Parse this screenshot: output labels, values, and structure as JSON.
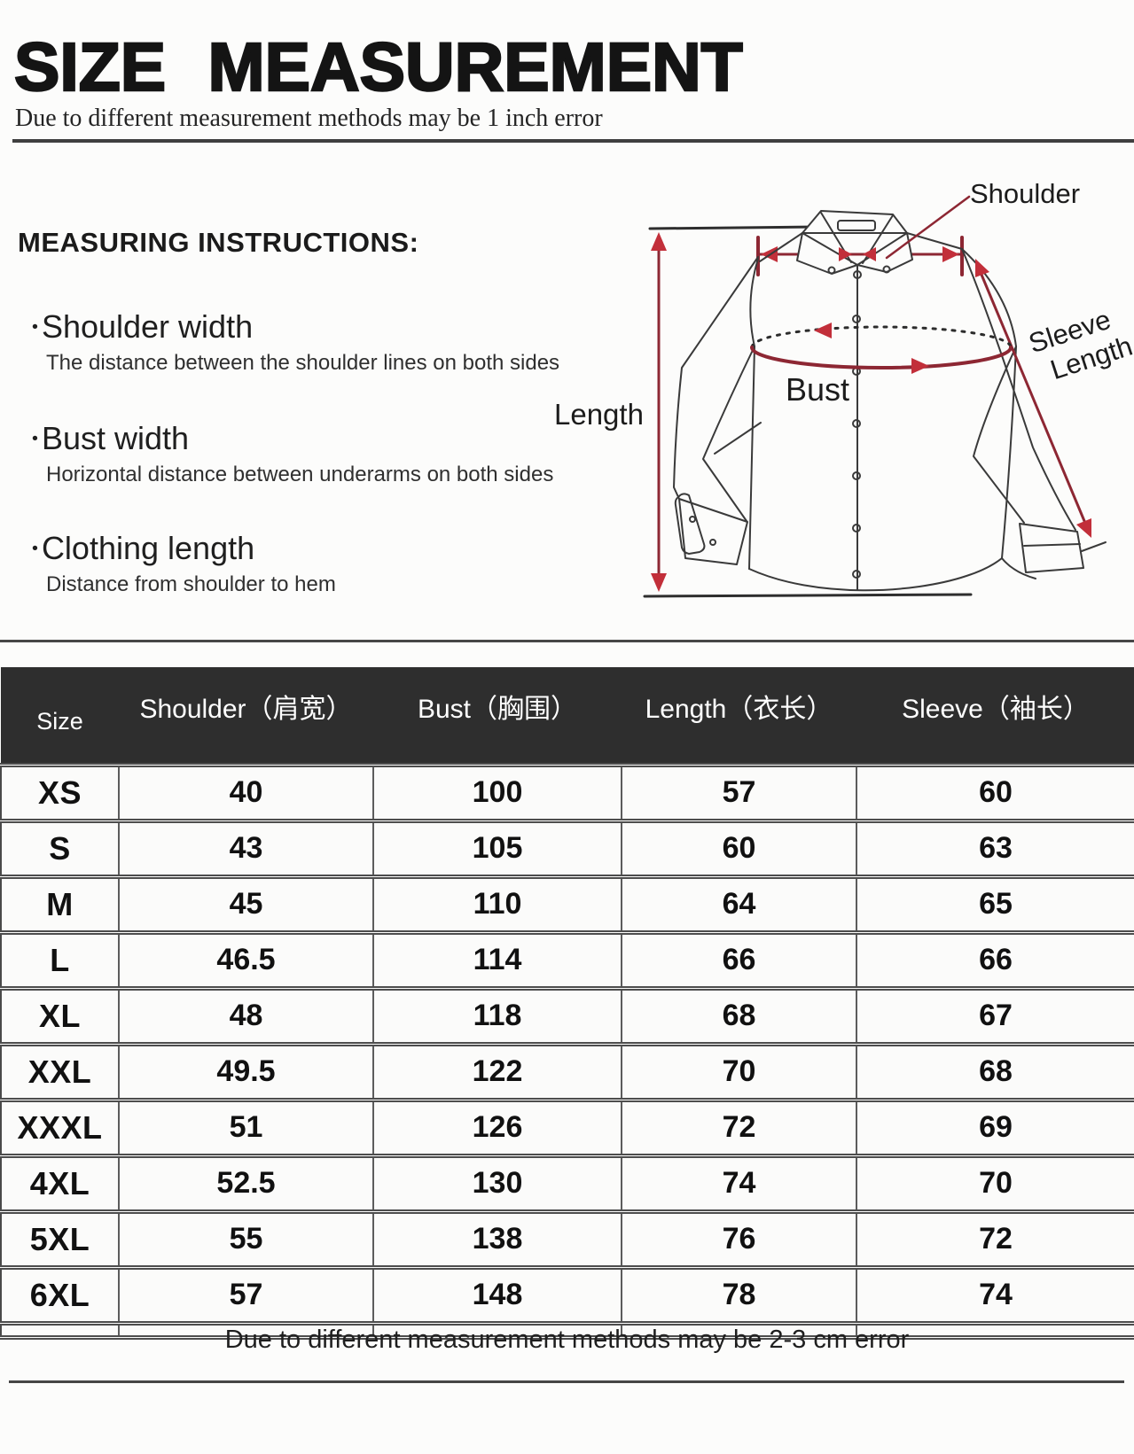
{
  "page": {
    "title": "SIZE  MEASUREMENT",
    "subtitle": "Due to different measurement methods may be 1 inch error",
    "footer_note": "Due to different measurement methods may be 2-3 cm error"
  },
  "instructions": {
    "heading": "MEASURING INSTRUCTIONS:",
    "items": [
      {
        "term": "Shoulder width",
        "desc": "The distance between the shoulder lines on both sides"
      },
      {
        "term": "Bust width",
        "desc": "Horizontal distance between underarms on both sides"
      },
      {
        "term": "Clothing length",
        "desc": "Distance from shoulder to hem"
      }
    ]
  },
  "diagram": {
    "labels": {
      "shoulder": "Shoulder",
      "sleeve_line1": "Sleeve",
      "sleeve_line2": "Length",
      "bust": "Bust",
      "length": "Length"
    },
    "colors": {
      "annotation_line": "#8d2733",
      "arrow_red": "#c22f3a",
      "outline_ink": "#3a3a3a"
    }
  },
  "chart_data": {
    "type": "table",
    "title": "SIZE MEASUREMENT",
    "columns": [
      "Size",
      "Shoulder（肩宽）",
      "Bust（胸围）",
      "Length（衣长）",
      "Sleeve（袖长）"
    ],
    "rows": [
      [
        "XS",
        "40",
        "100",
        "57",
        "60"
      ],
      [
        "S",
        "43",
        "105",
        "60",
        "63"
      ],
      [
        "M",
        "45",
        "110",
        "64",
        "65"
      ],
      [
        "L",
        "46.5",
        "114",
        "66",
        "66"
      ],
      [
        "XL",
        "48",
        "118",
        "68",
        "67"
      ],
      [
        "XXL",
        "49.5",
        "122",
        "70",
        "68"
      ],
      [
        "XXXL",
        "51",
        "126",
        "72",
        "69"
      ],
      [
        "4XL",
        "52.5",
        "130",
        "74",
        "70"
      ],
      [
        "5XL",
        "55",
        "138",
        "76",
        "72"
      ],
      [
        "6XL",
        "57",
        "148",
        "78",
        "74"
      ]
    ],
    "header_bg": "#2e2e2e",
    "header_text_color": "#ffffff",
    "grid_color": "#4d4d4d"
  }
}
